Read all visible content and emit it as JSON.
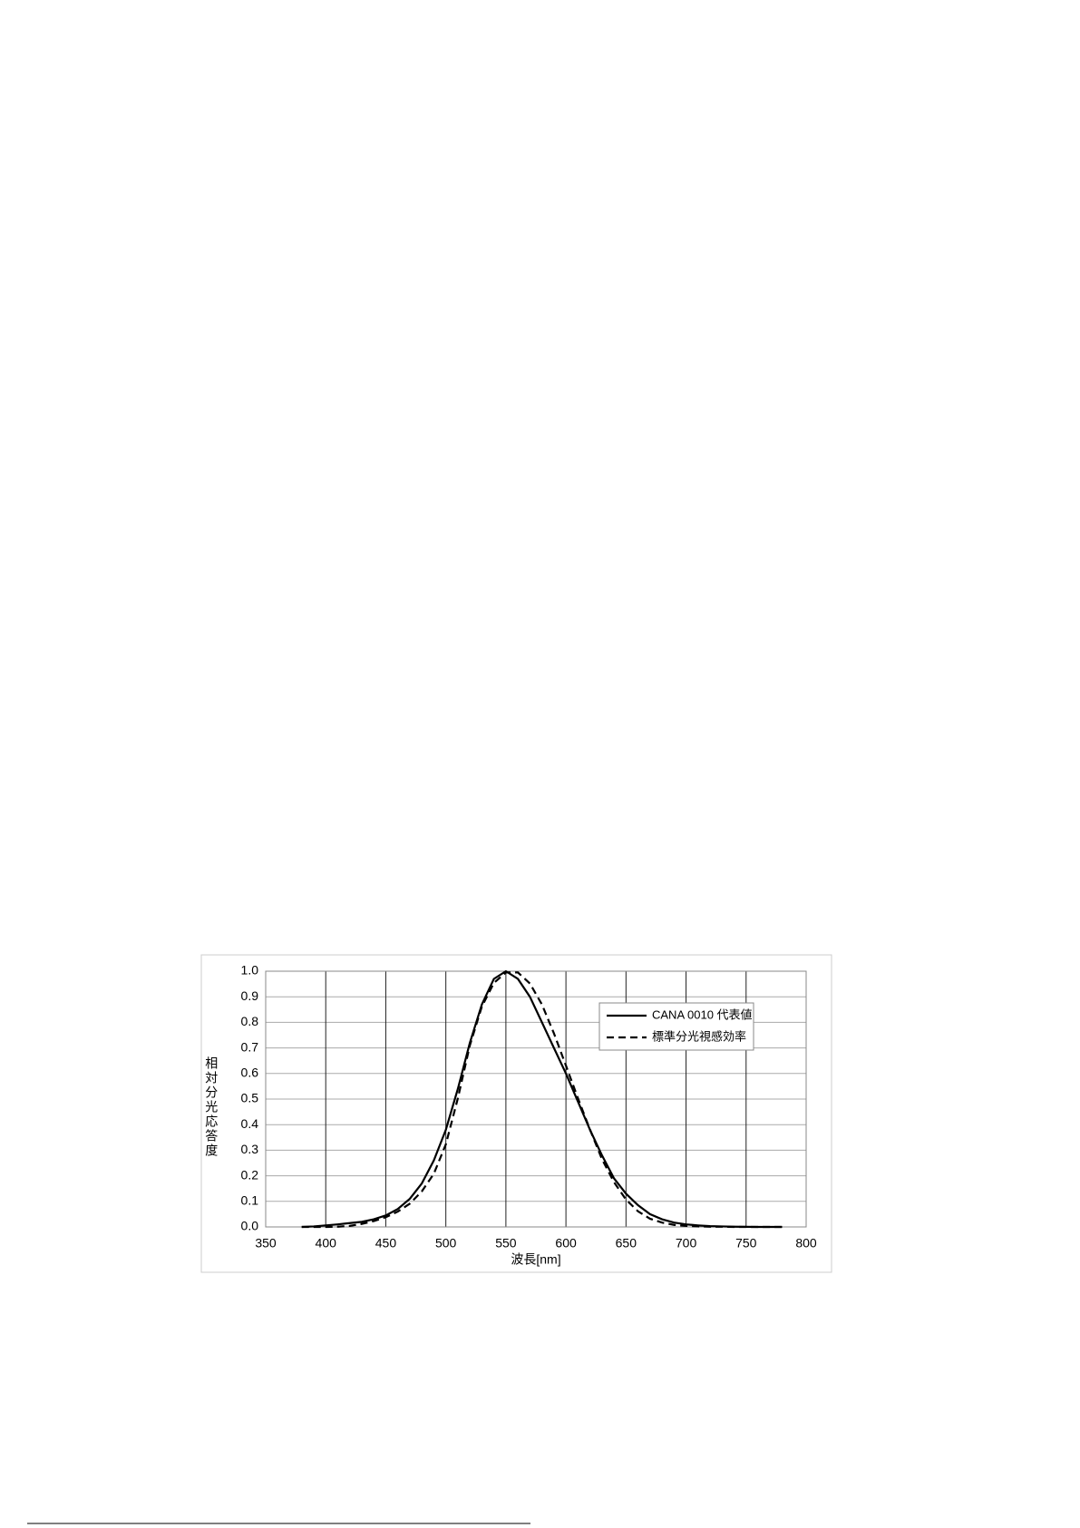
{
  "chart_data": {
    "type": "line",
    "y_label": "相対分光応答度",
    "x_label": "波長[nm]",
    "x": [
      380,
      390,
      400,
      410,
      420,
      430,
      440,
      450,
      460,
      470,
      480,
      490,
      500,
      510,
      520,
      530,
      540,
      550,
      560,
      570,
      580,
      590,
      600,
      610,
      620,
      630,
      640,
      650,
      660,
      670,
      680,
      690,
      700,
      710,
      720,
      730,
      740,
      750,
      760,
      770,
      780
    ],
    "series": [
      {
        "name": "CANA 0010 代表値",
        "color": "#000000",
        "dashed": false,
        "values": [
          0,
          0.002,
          0.006,
          0.01,
          0.015,
          0.02,
          0.03,
          0.045,
          0.07,
          0.11,
          0.17,
          0.26,
          0.38,
          0.54,
          0.72,
          0.87,
          0.97,
          1.0,
          0.97,
          0.9,
          0.8,
          0.7,
          0.6,
          0.49,
          0.38,
          0.28,
          0.19,
          0.13,
          0.085,
          0.05,
          0.03,
          0.017,
          0.01,
          0.006,
          0.003,
          0.002,
          0.001,
          0.0005,
          0,
          0,
          0
        ]
      },
      {
        "name": "標準分光視感効率",
        "color": "#000000",
        "dashed": true,
        "values": [
          0,
          0,
          0,
          0.001,
          0.004,
          0.012,
          0.023,
          0.038,
          0.06,
          0.091,
          0.139,
          0.208,
          0.323,
          0.503,
          0.71,
          0.862,
          0.954,
          0.995,
          0.995,
          0.952,
          0.87,
          0.757,
          0.631,
          0.503,
          0.381,
          0.265,
          0.175,
          0.107,
          0.061,
          0.032,
          0.017,
          0.008,
          0.004,
          0.002,
          0.001,
          0.001,
          0,
          0,
          0,
          0,
          0
        ]
      }
    ],
    "xlim": [
      350,
      800
    ],
    "xticks": [
      350,
      400,
      450,
      500,
      550,
      600,
      650,
      700,
      750,
      800
    ],
    "ylim": [
      0,
      1
    ],
    "yticks": [
      {
        "value": 0,
        "label": "0.0"
      },
      0.1,
      0.2,
      0.3,
      0.4,
      0.5,
      0.6,
      0.7,
      0.8,
      0.9,
      {
        "value": 1,
        "label": "1.0"
      }
    ],
    "grid": true,
    "legend": "upper right"
  }
}
